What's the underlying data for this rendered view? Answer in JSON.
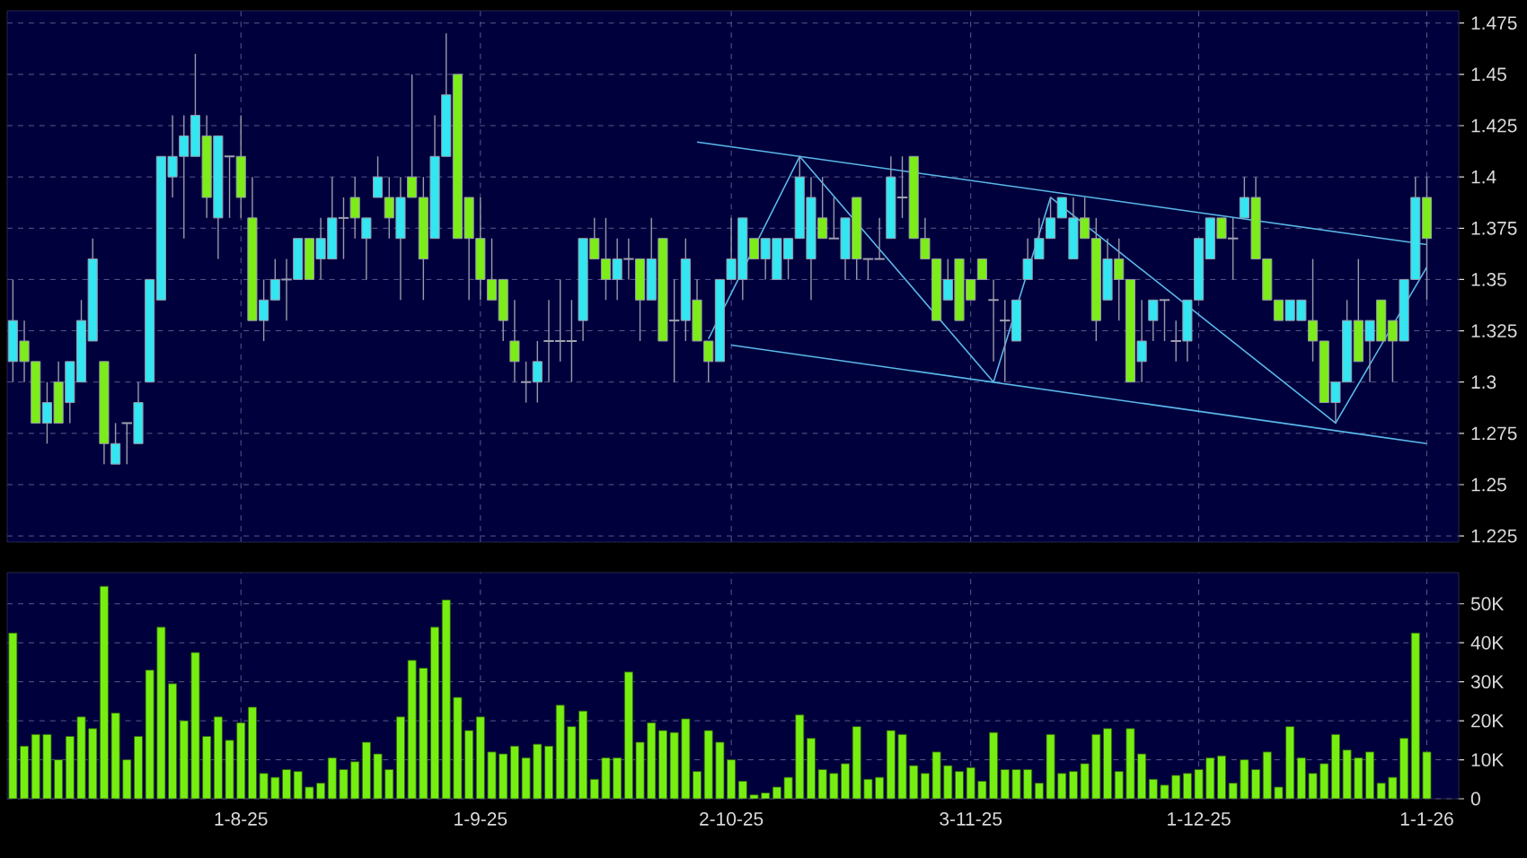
{
  "chart_data": [
    {
      "type": "candlestick",
      "tick_labels": "y",
      "grid": true,
      "categories": [
        null,
        null,
        null,
        null,
        null,
        null,
        null,
        null,
        null,
        null,
        null,
        null,
        null,
        null,
        null,
        null,
        null,
        null,
        null,
        null,
        null,
        null,
        null,
        null,
        null,
        null,
        null,
        null,
        null,
        null,
        null,
        null,
        null,
        null,
        null,
        null,
        null,
        null,
        null,
        null,
        null,
        null,
        null,
        null,
        null,
        null,
        null,
        null,
        null,
        null,
        null,
        null,
        null,
        null,
        null,
        null,
        null,
        null,
        null,
        null,
        null,
        null,
        null,
        null,
        null,
        null,
        null,
        null,
        null,
        null,
        null,
        null,
        null,
        null,
        null,
        null,
        null,
        null,
        null,
        null,
        null,
        null,
        null,
        null,
        null,
        null,
        null,
        null,
        null,
        null,
        null,
        null,
        null,
        null,
        null,
        null,
        null,
        null,
        null,
        null,
        null,
        null,
        null,
        null,
        null,
        null,
        null,
        null,
        null,
        null,
        null,
        null,
        null,
        null,
        null,
        null,
        null,
        null,
        null,
        null,
        null,
        null,
        null,
        null,
        null
      ],
      "ohlc": [
        [
          1.31,
          1.35,
          1.3,
          1.33
        ],
        [
          1.32,
          1.33,
          1.3,
          1.31
        ],
        [
          1.31,
          1.31,
          1.28,
          1.28
        ],
        [
          1.28,
          1.3,
          1.27,
          1.29
        ],
        [
          1.3,
          1.31,
          1.28,
          1.28
        ],
        [
          1.29,
          1.31,
          1.28,
          1.31
        ],
        [
          1.3,
          1.34,
          1.3,
          1.33
        ],
        [
          1.32,
          1.37,
          1.32,
          1.36
        ],
        [
          1.31,
          1.31,
          1.26,
          1.27
        ],
        [
          1.26,
          1.28,
          1.26,
          1.27
        ],
        [
          1.28,
          1.28,
          1.26,
          1.28
        ],
        [
          1.27,
          1.3,
          1.27,
          1.29
        ],
        [
          1.3,
          1.35,
          1.3,
          1.35
        ],
        [
          1.34,
          1.41,
          1.34,
          1.41
        ],
        [
          1.4,
          1.43,
          1.39,
          1.41
        ],
        [
          1.41,
          1.43,
          1.37,
          1.42
        ],
        [
          1.41,
          1.46,
          1.41,
          1.43
        ],
        [
          1.42,
          1.43,
          1.38,
          1.39
        ],
        [
          1.38,
          1.42,
          1.36,
          1.42
        ],
        [
          1.41,
          1.41,
          1.38,
          1.41
        ],
        [
          1.41,
          1.43,
          1.38,
          1.39
        ],
        [
          1.38,
          1.4,
          1.33,
          1.33
        ],
        [
          1.33,
          1.35,
          1.32,
          1.34
        ],
        [
          1.34,
          1.36,
          1.34,
          1.35
        ],
        [
          1.35,
          1.36,
          1.33,
          1.35
        ],
        [
          1.35,
          1.37,
          1.35,
          1.37
        ],
        [
          1.37,
          1.37,
          1.35,
          1.35
        ],
        [
          1.36,
          1.38,
          1.35,
          1.37
        ],
        [
          1.36,
          1.4,
          1.36,
          1.38
        ],
        [
          1.38,
          1.39,
          1.36,
          1.38
        ],
        [
          1.39,
          1.4,
          1.37,
          1.38
        ],
        [
          1.37,
          1.38,
          1.35,
          1.38
        ],
        [
          1.39,
          1.41,
          1.39,
          1.4
        ],
        [
          1.39,
          1.4,
          1.37,
          1.38
        ],
        [
          1.37,
          1.4,
          1.34,
          1.39
        ],
        [
          1.4,
          1.45,
          1.39,
          1.39
        ],
        [
          1.39,
          1.4,
          1.34,
          1.36
        ],
        [
          1.37,
          1.43,
          1.37,
          1.41
        ],
        [
          1.41,
          1.47,
          1.41,
          1.44
        ],
        [
          1.45,
          1.45,
          1.37,
          1.37
        ],
        [
          1.39,
          1.39,
          1.34,
          1.37
        ],
        [
          1.37,
          1.39,
          1.34,
          1.35
        ],
        [
          1.35,
          1.37,
          1.34,
          1.34
        ],
        [
          1.35,
          1.35,
          1.32,
          1.33
        ],
        [
          1.32,
          1.34,
          1.3,
          1.31
        ],
        [
          1.3,
          1.31,
          1.29,
          1.3
        ],
        [
          1.3,
          1.32,
          1.29,
          1.31
        ],
        [
          1.32,
          1.34,
          1.3,
          1.32
        ],
        [
          1.32,
          1.35,
          1.31,
          1.32
        ],
        [
          1.32,
          1.34,
          1.3,
          1.32
        ],
        [
          1.33,
          1.37,
          1.32,
          1.37
        ],
        [
          1.37,
          1.38,
          1.36,
          1.36
        ],
        [
          1.36,
          1.38,
          1.34,
          1.35
        ],
        [
          1.35,
          1.37,
          1.34,
          1.36
        ],
        [
          1.36,
          1.37,
          1.35,
          1.36
        ],
        [
          1.36,
          1.36,
          1.32,
          1.34
        ],
        [
          1.34,
          1.38,
          1.34,
          1.36
        ],
        [
          1.37,
          1.37,
          1.32,
          1.32
        ],
        [
          1.33,
          1.35,
          1.3,
          1.33
        ],
        [
          1.33,
          1.37,
          1.32,
          1.36
        ],
        [
          1.34,
          1.35,
          1.32,
          1.32
        ],
        [
          1.32,
          1.32,
          1.3,
          1.31
        ],
        [
          1.31,
          1.35,
          1.31,
          1.35
        ],
        [
          1.35,
          1.38,
          1.35,
          1.36
        ],
        [
          1.35,
          1.38,
          1.34,
          1.38
        ],
        [
          1.37,
          1.37,
          1.36,
          1.36
        ],
        [
          1.36,
          1.37,
          1.35,
          1.37
        ],
        [
          1.35,
          1.37,
          1.35,
          1.37
        ],
        [
          1.36,
          1.37,
          1.35,
          1.37
        ],
        [
          1.37,
          1.41,
          1.37,
          1.4
        ],
        [
          1.36,
          1.4,
          1.34,
          1.39
        ],
        [
          1.38,
          1.4,
          1.37,
          1.37
        ],
        [
          1.37,
          1.39,
          1.37,
          1.37
        ],
        [
          1.36,
          1.38,
          1.35,
          1.38
        ],
        [
          1.39,
          1.39,
          1.35,
          1.36
        ],
        [
          1.36,
          1.36,
          1.35,
          1.36
        ],
        [
          1.36,
          1.38,
          1.36,
          1.36
        ],
        [
          1.37,
          1.41,
          1.37,
          1.4
        ],
        [
          1.39,
          1.41,
          1.38,
          1.39
        ],
        [
          1.41,
          1.41,
          1.37,
          1.37
        ],
        [
          1.37,
          1.38,
          1.36,
          1.36
        ],
        [
          1.36,
          1.36,
          1.33,
          1.33
        ],
        [
          1.34,
          1.36,
          1.34,
          1.35
        ],
        [
          1.36,
          1.36,
          1.33,
          1.33
        ],
        [
          1.35,
          1.35,
          1.34,
          1.34
        ],
        [
          1.36,
          1.36,
          1.35,
          1.35
        ],
        [
          1.34,
          1.35,
          1.31,
          1.34
        ],
        [
          1.33,
          1.34,
          1.3,
          1.33
        ],
        [
          1.32,
          1.34,
          1.32,
          1.34
        ],
        [
          1.35,
          1.37,
          1.35,
          1.36
        ],
        [
          1.36,
          1.38,
          1.36,
          1.37
        ],
        [
          1.37,
          1.39,
          1.37,
          1.38
        ],
        [
          1.38,
          1.39,
          1.38,
          1.39
        ],
        [
          1.36,
          1.39,
          1.36,
          1.38
        ],
        [
          1.38,
          1.39,
          1.37,
          1.37
        ],
        [
          1.37,
          1.38,
          1.32,
          1.33
        ],
        [
          1.34,
          1.37,
          1.34,
          1.36
        ],
        [
          1.36,
          1.37,
          1.33,
          1.35
        ],
        [
          1.35,
          1.35,
          1.3,
          1.3
        ],
        [
          1.31,
          1.34,
          1.3,
          1.32
        ],
        [
          1.33,
          1.34,
          1.32,
          1.34
        ],
        [
          1.34,
          1.34,
          1.32,
          1.34
        ],
        [
          1.32,
          1.33,
          1.31,
          1.32
        ],
        [
          1.32,
          1.34,
          1.31,
          1.34
        ],
        [
          1.34,
          1.37,
          1.34,
          1.37
        ],
        [
          1.36,
          1.38,
          1.36,
          1.38
        ],
        [
          1.38,
          1.38,
          1.37,
          1.37
        ],
        [
          1.37,
          1.38,
          1.35,
          1.37
        ],
        [
          1.38,
          1.4,
          1.38,
          1.39
        ],
        [
          1.39,
          1.4,
          1.36,
          1.36
        ],
        [
          1.36,
          1.36,
          1.34,
          1.34
        ],
        [
          1.34,
          1.34,
          1.33,
          1.33
        ],
        [
          1.33,
          1.34,
          1.33,
          1.34
        ],
        [
          1.33,
          1.34,
          1.33,
          1.34
        ],
        [
          1.33,
          1.36,
          1.31,
          1.32
        ],
        [
          1.32,
          1.32,
          1.29,
          1.29
        ],
        [
          1.29,
          1.3,
          1.28,
          1.3
        ],
        [
          1.3,
          1.34,
          1.3,
          1.33
        ],
        [
          1.33,
          1.36,
          1.31,
          1.31
        ],
        [
          1.32,
          1.33,
          1.3,
          1.33
        ],
        [
          1.34,
          1.34,
          1.32,
          1.32
        ],
        [
          1.33,
          1.33,
          1.3,
          1.32
        ],
        [
          1.32,
          1.35,
          1.32,
          1.35
        ],
        [
          1.35,
          1.4,
          1.35,
          1.39
        ],
        [
          1.39,
          1.4,
          1.34,
          1.37
        ]
      ],
      "colors": [
        "#33e6f2",
        "#7ded1a",
        "#7ded1a",
        "#33e6f2",
        "#7ded1a",
        "#33e6f2",
        "#33e6f2",
        "#33e6f2",
        "#7ded1a",
        "#33e6f2",
        "#a0a0b0",
        "#33e6f2",
        "#33e6f2",
        "#33e6f2",
        "#33e6f2",
        "#33e6f2",
        "#33e6f2",
        "#7ded1a",
        "#33e6f2",
        "#a0a0b0",
        "#7ded1a",
        "#7ded1a",
        "#33e6f2",
        "#33e6f2",
        "#a0a0b0",
        "#33e6f2",
        "#7ded1a",
        "#33e6f2",
        "#33e6f2",
        "#a0a0b0",
        "#7ded1a",
        "#33e6f2",
        "#33e6f2",
        "#7ded1a",
        "#33e6f2",
        "#7ded1a",
        "#7ded1a",
        "#33e6f2",
        "#33e6f2",
        "#7ded1a",
        "#7ded1a",
        "#7ded1a",
        "#7ded1a",
        "#7ded1a",
        "#7ded1a",
        "#a0a0b0",
        "#33e6f2",
        "#a0a0b0",
        "#a0a0b0",
        "#a0a0b0",
        "#33e6f2",
        "#7ded1a",
        "#7ded1a",
        "#33e6f2",
        "#a0a0b0",
        "#7ded1a",
        "#33e6f2",
        "#7ded1a",
        "#a0a0b0",
        "#33e6f2",
        "#7ded1a",
        "#7ded1a",
        "#33e6f2",
        "#33e6f2",
        "#33e6f2",
        "#7ded1a",
        "#33e6f2",
        "#33e6f2",
        "#33e6f2",
        "#33e6f2",
        "#33e6f2",
        "#7ded1a",
        "#a0a0b0",
        "#33e6f2",
        "#7ded1a",
        "#a0a0b0",
        "#a0a0b0",
        "#33e6f2",
        "#a0a0b0",
        "#7ded1a",
        "#7ded1a",
        "#7ded1a",
        "#33e6f2",
        "#7ded1a",
        "#7ded1a",
        "#7ded1a",
        "#a0a0b0",
        "#a0a0b0",
        "#33e6f2",
        "#33e6f2",
        "#33e6f2",
        "#33e6f2",
        "#33e6f2",
        "#33e6f2",
        "#7ded1a",
        "#7ded1a",
        "#33e6f2",
        "#7ded1a",
        "#7ded1a",
        "#33e6f2",
        "#33e6f2",
        "#a0a0b0",
        "#a0a0b0",
        "#33e6f2",
        "#33e6f2",
        "#33e6f2",
        "#7ded1a",
        "#a0a0b0",
        "#33e6f2",
        "#7ded1a",
        "#7ded1a",
        "#7ded1a",
        "#33e6f2",
        "#33e6f2",
        "#7ded1a",
        "#7ded1a",
        "#33e6f2",
        "#33e6f2",
        "#7ded1a",
        "#33e6f2",
        "#7ded1a",
        "#7ded1a",
        "#33e6f2",
        "#33e6f2",
        "#7ded1a"
      ],
      "series": [
        {
          "type": "line",
          "color": "#5ab8ea",
          "values": [
            null,
            null,
            null,
            null,
            null,
            null,
            null,
            null,
            null,
            null,
            null,
            null,
            null,
            null,
            null,
            null,
            null,
            null,
            null,
            null,
            null,
            null,
            null,
            null,
            null,
            null,
            null,
            null,
            null,
            null,
            null,
            null,
            null,
            null,
            null,
            null,
            null,
            null,
            null,
            null,
            null,
            null,
            null,
            null,
            null,
            null,
            null,
            null,
            null,
            null,
            null,
            null,
            null,
            null,
            null,
            null,
            null,
            null,
            null,
            null,
            1.417,
            null,
            null,
            null,
            null,
            null,
            null,
            null,
            null,
            null,
            null,
            null,
            null,
            null,
            null,
            null,
            null,
            null,
            null,
            null,
            null,
            null,
            null,
            null,
            null,
            null,
            null,
            null,
            null,
            null,
            null,
            null,
            null,
            null,
            null,
            null,
            null,
            null,
            null,
            null,
            null,
            null,
            null,
            null,
            null,
            null,
            null,
            null,
            null,
            null,
            null,
            null,
            null,
            null,
            null,
            null,
            null,
            null,
            null,
            null,
            null,
            null,
            null,
            null,
            1.367
          ]
        },
        {
          "type": "line",
          "color": "#5ab8ea",
          "values": [
            null,
            null,
            null,
            null,
            null,
            null,
            null,
            null,
            null,
            null,
            null,
            null,
            null,
            null,
            null,
            null,
            null,
            null,
            null,
            null,
            null,
            null,
            null,
            null,
            null,
            null,
            null,
            null,
            null,
            null,
            null,
            null,
            null,
            null,
            null,
            null,
            null,
            null,
            null,
            null,
            null,
            null,
            null,
            null,
            null,
            null,
            null,
            null,
            null,
            null,
            null,
            null,
            null,
            null,
            null,
            null,
            null,
            null,
            null,
            null,
            null,
            null,
            null,
            1.318,
            null,
            null,
            null,
            null,
            null,
            null,
            null,
            null,
            null,
            null,
            null,
            null,
            null,
            null,
            null,
            null,
            null,
            null,
            null,
            null,
            null,
            null,
            null,
            null,
            null,
            null,
            null,
            null,
            null,
            null,
            null,
            null,
            null,
            null,
            null,
            null,
            null,
            null,
            null,
            null,
            null,
            null,
            null,
            null,
            null,
            null,
            null,
            null,
            null,
            null,
            null,
            null,
            null,
            null,
            null,
            null,
            null,
            null,
            null,
            null,
            1.27
          ]
        },
        {
          "type": "line",
          "color": "#5ab8ea",
          "values": [
            null,
            null,
            null,
            null,
            null,
            null,
            null,
            null,
            null,
            null,
            null,
            null,
            null,
            null,
            null,
            null,
            null,
            null,
            null,
            null,
            null,
            null,
            null,
            null,
            null,
            null,
            null,
            null,
            null,
            null,
            null,
            null,
            null,
            null,
            null,
            null,
            null,
            null,
            null,
            null,
            null,
            null,
            null,
            null,
            null,
            null,
            null,
            null,
            null,
            null,
            null,
            null,
            null,
            null,
            null,
            null,
            null,
            null,
            null,
            null,
            null,
            1.321,
            null,
            null,
            null,
            null,
            null,
            null,
            null,
            1.41,
            null,
            null,
            null,
            null,
            null,
            null,
            null,
            null,
            null,
            null,
            null,
            null,
            null,
            null,
            null,
            null,
            1.3,
            null,
            null,
            null,
            null,
            1.39,
            null,
            null,
            null,
            null,
            null,
            null,
            null,
            null,
            null,
            null,
            null,
            null,
            null,
            null,
            null,
            null,
            null,
            null,
            null,
            null,
            null,
            null,
            null,
            null,
            1.28,
            null,
            null,
            null,
            null,
            null,
            null,
            null,
            1.356
          ]
        }
      ],
      "ylim": [
        1.222,
        1.481
      ],
      "yticks": [
        1.225,
        1.25,
        1.275,
        1.3,
        1.325,
        1.35,
        1.375,
        1.4,
        1.425,
        1.45,
        1.475
      ]
    },
    {
      "type": "bar",
      "grid": true,
      "color": "#77ee11",
      "categories": [
        null,
        null,
        null,
        null,
        null,
        null,
        null,
        null,
        null,
        null,
        null,
        null,
        null,
        null,
        null,
        null,
        null,
        null,
        null,
        null,
        "1-8-25",
        null,
        null,
        null,
        null,
        null,
        null,
        null,
        null,
        null,
        null,
        null,
        null,
        null,
        null,
        null,
        null,
        null,
        null,
        null,
        null,
        "1-9-25",
        null,
        null,
        null,
        null,
        null,
        null,
        null,
        null,
        null,
        null,
        null,
        null,
        null,
        null,
        null,
        null,
        null,
        null,
        null,
        null,
        null,
        "2-10-25",
        null,
        null,
        null,
        null,
        null,
        null,
        null,
        null,
        null,
        null,
        null,
        null,
        null,
        null,
        null,
        null,
        null,
        null,
        null,
        null,
        "3-11-25",
        null,
        null,
        null,
        null,
        null,
        null,
        null,
        null,
        null,
        null,
        null,
        null,
        null,
        null,
        null,
        null,
        null,
        null,
        null,
        "1-12-25",
        null,
        null,
        null,
        null,
        null,
        null,
        null,
        null,
        null,
        null,
        null,
        null,
        null,
        null,
        null,
        null,
        null,
        null,
        null,
        "1-1-26"
      ],
      "values": [
        42500,
        13500,
        16500,
        16500,
        10000,
        16000,
        21000,
        18000,
        54500,
        22000,
        10000,
        16000,
        33000,
        44000,
        29500,
        20000,
        37500,
        16000,
        21000,
        15000,
        19500,
        23500,
        6500,
        5500,
        7500,
        7000,
        3000,
        4000,
        10500,
        7500,
        9500,
        14500,
        11500,
        7500,
        21000,
        35500,
        33500,
        44000,
        51000,
        26000,
        17500,
        21000,
        12000,
        11500,
        13500,
        10500,
        14000,
        13500,
        24000,
        18500,
        22500,
        5000,
        10500,
        10500,
        32500,
        14500,
        19500,
        17500,
        17000,
        20500,
        7000,
        17500,
        14500,
        10000,
        4500,
        1000,
        1500,
        3000,
        5500,
        21500,
        15500,
        7500,
        6500,
        9000,
        18500,
        5000,
        5500,
        17500,
        16500,
        8500,
        6500,
        12000,
        8500,
        7000,
        8000,
        4500,
        17000,
        7500,
        7500,
        7500,
        4000,
        16500,
        6500,
        7000,
        9000,
        16500,
        18000,
        7000,
        18000,
        11500,
        5000,
        3500,
        6000,
        6500,
        7500,
        10500,
        11000,
        4000,
        10000,
        7500,
        12000,
        3000,
        18500,
        10500,
        6500,
        9000,
        16500,
        12500,
        10500,
        12000,
        4000,
        5500,
        15500,
        42500,
        12000
      ],
      "ylim": [
        0,
        58000
      ],
      "yticks": [
        0,
        {
          "value": 10000,
          "label": "10K"
        },
        {
          "value": 20000,
          "label": "20K"
        },
        {
          "value": 30000,
          "label": "30K"
        },
        {
          "value": 40000,
          "label": "40K"
        },
        {
          "value": 50000,
          "label": "50K"
        }
      ]
    }
  ]
}
